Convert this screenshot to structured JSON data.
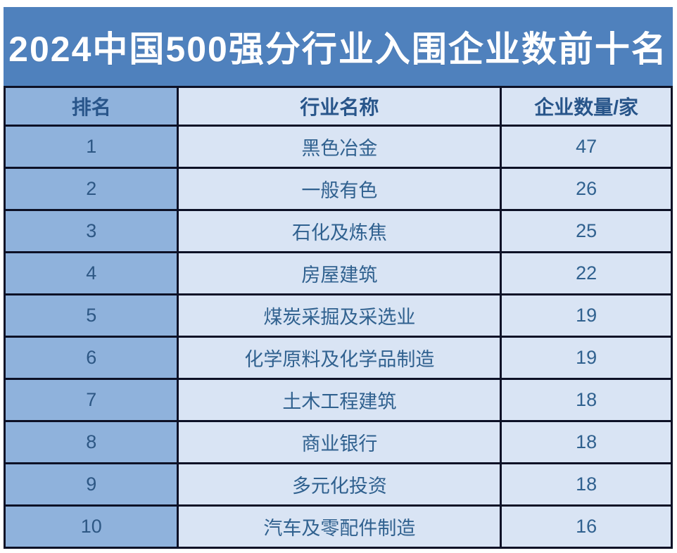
{
  "title": {
    "text": "2024中国500强分行业入围企业数前十名",
    "background_color": "#4F81BD",
    "text_color": "#FFFFFF"
  },
  "table": {
    "columns": [
      {
        "key": "rank",
        "label": "排名"
      },
      {
        "key": "industry",
        "label": "行业名称"
      },
      {
        "key": "count",
        "label": "企业数量/家"
      }
    ],
    "rows": [
      {
        "rank": "1",
        "industry": "黑色冶金",
        "count": "47"
      },
      {
        "rank": "2",
        "industry": "一般有色",
        "count": "26"
      },
      {
        "rank": "3",
        "industry": "石化及炼焦",
        "count": "25"
      },
      {
        "rank": "4",
        "industry": "房屋建筑",
        "count": "22"
      },
      {
        "rank": "5",
        "industry": "煤炭采掘及采选业",
        "count": "19"
      },
      {
        "rank": "6",
        "industry": "化学原料及化学品制造",
        "count": "19"
      },
      {
        "rank": "7",
        "industry": "土木工程建筑",
        "count": "18"
      },
      {
        "rank": "8",
        "industry": "商业银行",
        "count": "18"
      },
      {
        "rank": "9",
        "industry": "多元化投资",
        "count": "18"
      },
      {
        "rank": "10",
        "industry": "汽车及零配件制造",
        "count": "16"
      }
    ],
    "colors": {
      "rank_column_bg": "#8FB2DC",
      "cell_bg": "#D9E4F4",
      "border": "#0D1126",
      "header_text": "#28558A",
      "body_text": "#30618F"
    }
  }
}
